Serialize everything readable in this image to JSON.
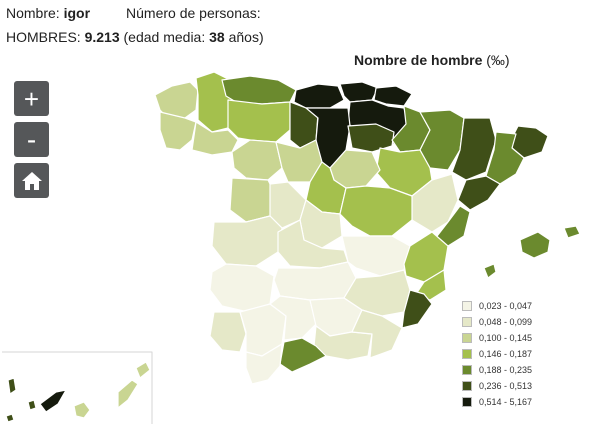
{
  "info": {
    "name_label": "Nombre:",
    "name_value": "igor",
    "count_label": "Número de personas:",
    "men_label": "HOMBRES:",
    "men_value": "9.213",
    "age_label": "(edad media:",
    "age_value": "38",
    "age_unit": "años)"
  },
  "map": {
    "title": "Nombre de hombre",
    "unit": "(‰)"
  },
  "controls": {
    "zoom_in": "+",
    "zoom_out": "-",
    "home_icon": "home-icon"
  },
  "legend": [
    {
      "label": "0,023 - 0,047",
      "color": "#f4f4e6"
    },
    {
      "label": "0,048 - 0,099",
      "color": "#e5e8c8"
    },
    {
      "label": "0,100 - 0,145",
      "color": "#c9d592"
    },
    {
      "label": "0,146 - 0,187",
      "color": "#a4c04d"
    },
    {
      "label": "0,188 - 0,235",
      "color": "#6b8a2e"
    },
    {
      "label": "0,236 - 0,513",
      "color": "#3f4f18"
    },
    {
      "label": "0,514 - 5,167",
      "color": "#151a0d"
    }
  ]
}
